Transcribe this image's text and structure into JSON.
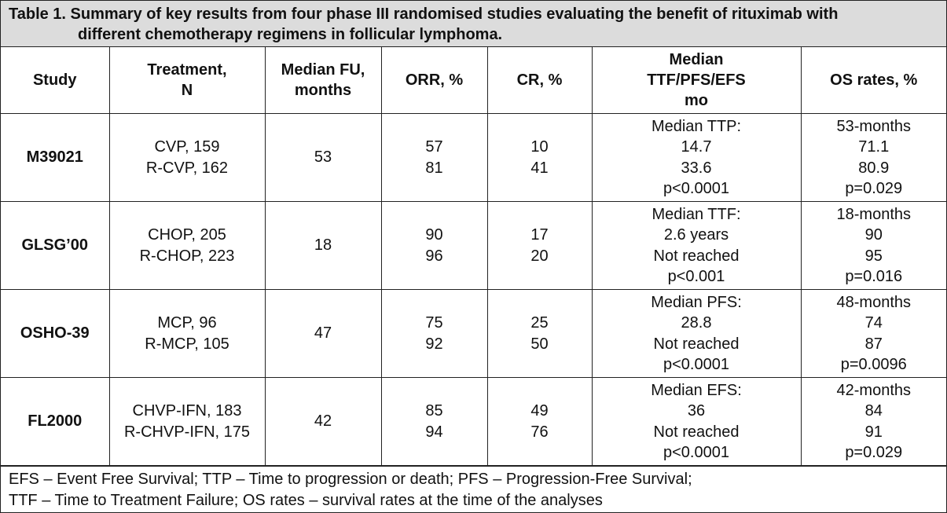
{
  "caption": {
    "line1": "Table 1. Summary of key results from four phase III randomised studies evaluating the benefit of rituximab with",
    "line2": "different chemotherapy regimens in follicular lymphoma."
  },
  "headers": {
    "study": "Study",
    "treatment": [
      "Treatment,",
      "N"
    ],
    "median_fu": [
      "Median FU,",
      "months"
    ],
    "orr": "ORR, %",
    "cr": "CR, %",
    "ttf": [
      "Median",
      "TTF/PFS/EFS",
      "mo"
    ],
    "os": "OS rates, %"
  },
  "rows": [
    {
      "study": "M39021",
      "treatment": [
        "CVP, 159",
        "R-CVP, 162"
      ],
      "median_fu": "53",
      "orr": [
        "57",
        "81"
      ],
      "cr": [
        "10",
        "41"
      ],
      "ttf": [
        "Median TTP:",
        "14.7",
        "33.6",
        "p<0.0001"
      ],
      "os": [
        "53-months",
        "71.1",
        "80.9",
        "p=0.029"
      ]
    },
    {
      "study": "GLSG’00",
      "treatment": [
        "CHOP, 205",
        "R-CHOP, 223"
      ],
      "median_fu": "18",
      "orr": [
        "90",
        "96"
      ],
      "cr": [
        "17",
        "20"
      ],
      "ttf": [
        "Median TTF:",
        "2.6 years",
        "Not reached",
        "p<0.001"
      ],
      "os": [
        "18-months",
        "90",
        "95",
        "p=0.016"
      ]
    },
    {
      "study": "OSHO-39",
      "treatment": [
        "MCP, 96",
        "R-MCP, 105"
      ],
      "median_fu": "47",
      "orr": [
        "75",
        "92"
      ],
      "cr": [
        "25",
        "50"
      ],
      "ttf": [
        "Median PFS:",
        "28.8",
        "Not reached",
        "p<0.0001"
      ],
      "os": [
        "48-months",
        "74",
        "87",
        "p=0.0096"
      ]
    },
    {
      "study": "FL2000",
      "treatment": [
        "CHVP-IFN, 183",
        "R-CHVP-IFN, 175"
      ],
      "median_fu": "42",
      "orr": [
        "85",
        "94"
      ],
      "cr": [
        "49",
        "76"
      ],
      "ttf": [
        "Median EFS:",
        "36",
        "Not reached",
        "p<0.0001"
      ],
      "os": [
        "42-months",
        "84",
        "91",
        "p=0.029"
      ]
    }
  ],
  "footnote": {
    "line1": "EFS – Event Free Survival; TTP – Time to progression or death; PFS – Progression-Free Survival;",
    "line2": "TTF – Time to Treatment Failure; OS rates – survival rates at the time of the analyses"
  }
}
